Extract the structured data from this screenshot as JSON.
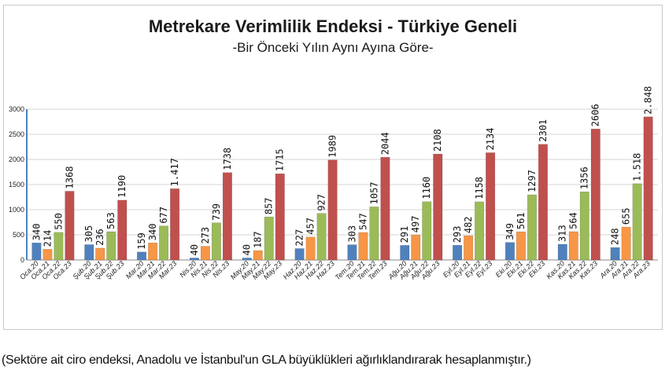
{
  "chart_data": {
    "type": "bar",
    "title": "Metrekare Verimlilik Endeksi - Türkiye Geneli",
    "subtitle": "-Bir Önceki Yılın Aynı Ayına Göre-",
    "ylim": [
      0,
      3000
    ],
    "yticks": [
      "0",
      "500",
      "1000",
      "1500",
      "2000",
      "2500",
      "3000"
    ],
    "grid": true,
    "colors": [
      "#4f81bd",
      "#f79646",
      "#9bbb59",
      "#c0504d"
    ],
    "groups": [
      {
        "labels": [
          "Oca.20",
          "Oca.21",
          "Oca.22",
          "Oca.23"
        ],
        "values": [
          340,
          214,
          550,
          1368
        ],
        "data_labels": [
          "340",
          "214",
          "550",
          "1368"
        ]
      },
      {
        "labels": [
          "Şub.20",
          "Şub.21",
          "Şub.22",
          "Şub.23"
        ],
        "values": [
          305,
          236,
          563,
          1190
        ],
        "data_labels": [
          "305",
          "236",
          "563",
          "1190"
        ]
      },
      {
        "labels": [
          "Mar.20",
          "Mar.21",
          "Mar.22",
          "Mar.23"
        ],
        "values": [
          159,
          340,
          677,
          1417
        ],
        "data_labels": [
          "159",
          "340",
          "677",
          "1.417"
        ]
      },
      {
        "labels": [
          "Nis.20",
          "Nis.21",
          "Nis.22",
          "Nis.23"
        ],
        "values": [
          40,
          273,
          739,
          1738
        ],
        "data_labels": [
          "40",
          "273",
          "739",
          "1738"
        ]
      },
      {
        "labels": [
          "May.20",
          "May.21",
          "May.22",
          "May.23"
        ],
        "values": [
          40,
          187,
          857,
          1715
        ],
        "data_labels": [
          "40",
          "187",
          "857",
          "1715"
        ]
      },
      {
        "labels": [
          "Haz.20",
          "Haz.21",
          "Haz.22",
          "Haz.23"
        ],
        "values": [
          227,
          457,
          927,
          1989
        ],
        "data_labels": [
          "227",
          "457",
          "927",
          "1989"
        ]
      },
      {
        "labels": [
          "Tem.20",
          "Tem.21",
          "Tem.22",
          "Tem.23"
        ],
        "values": [
          303,
          547,
          1057,
          2044
        ],
        "data_labels": [
          "303",
          "547",
          "1057",
          "2044"
        ]
      },
      {
        "labels": [
          "Ağu.20",
          "Ağu.21",
          "Ağu.22",
          "Ağu.23"
        ],
        "values": [
          291,
          497,
          1160,
          2108
        ],
        "data_labels": [
          "291",
          "497",
          "1160",
          "2108"
        ]
      },
      {
        "labels": [
          "Eyl.20",
          "Eyl.21",
          "Eyl.22",
          "Eyl.23"
        ],
        "values": [
          293,
          482,
          1158,
          2134
        ],
        "data_labels": [
          "293",
          "482",
          "1158",
          "2134"
        ]
      },
      {
        "labels": [
          "Eki.20",
          "Eki.21",
          "Eki.22",
          "Eki.23"
        ],
        "values": [
          349,
          561,
          1297,
          2301
        ],
        "data_labels": [
          "349",
          "561",
          "1297",
          "2301"
        ]
      },
      {
        "labels": [
          "Kas.20",
          "Kas.21",
          "Kas.22",
          "Kas.23"
        ],
        "values": [
          313,
          564,
          1356,
          2606
        ],
        "data_labels": [
          "313",
          "564",
          "1356",
          "2606"
        ]
      },
      {
        "labels": [
          "Ara.20",
          "Ara.21",
          "Ara.22",
          "Ara.23"
        ],
        "values": [
          248,
          655,
          1518,
          2848
        ],
        "data_labels": [
          "248",
          "655",
          "1.518",
          "2.848"
        ]
      }
    ]
  },
  "footnote": "(Sektöre ait ciro endeksi, Anadolu ve İstanbul'un GLA büyüklükleri ağırlıklandırarak hesaplanmıştır.)"
}
